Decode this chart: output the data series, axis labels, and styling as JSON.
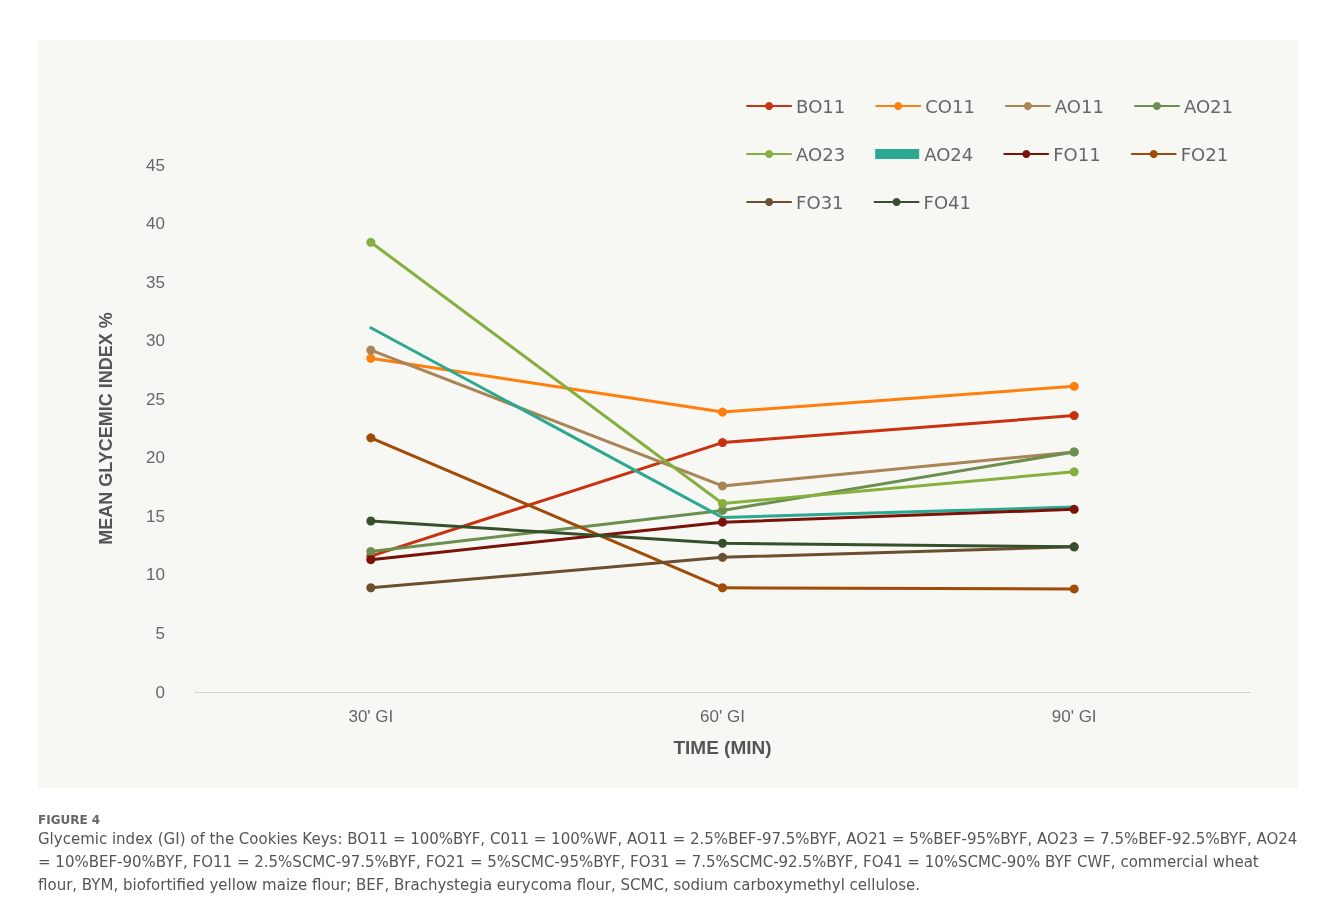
{
  "chart_data": {
    "type": "line",
    "xlabel": "TIME (MIN)",
    "ylabel": "MEAN GLYCEMIC INDEX %",
    "categories": [
      "30' GI",
      "60' GI",
      "90' GI"
    ],
    "series": [
      {
        "name": "BO11",
        "color": "#c9310f",
        "values": [
          11.6,
          21.3,
          23.6
        ]
      },
      {
        "name": "CO11",
        "color": "#ff7f0e",
        "values": [
          28.5,
          23.9,
          26.1
        ]
      },
      {
        "name": "AO11",
        "color": "#a88456",
        "values": [
          29.2,
          17.6,
          20.5
        ]
      },
      {
        "name": "AO21",
        "color": "#6a8f4e",
        "values": [
          12.0,
          15.5,
          20.5
        ]
      },
      {
        "name": "AO23",
        "color": "#86b03e",
        "values": [
          38.4,
          16.1,
          18.8
        ]
      },
      {
        "name": "AO24",
        "color": "#2aa890",
        "values": [
          31.1,
          14.9,
          15.8
        ],
        "marker": "none"
      },
      {
        "name": "FO11",
        "color": "#7a1208",
        "values": [
          11.3,
          14.5,
          15.6
        ]
      },
      {
        "name": "FO21",
        "color": "#a04c08",
        "values": [
          21.7,
          8.9,
          8.8
        ]
      },
      {
        "name": "FO31",
        "color": "#6b4f2e",
        "values": [
          8.9,
          11.5,
          12.4
        ]
      },
      {
        "name": "FO41",
        "color": "#36502c",
        "values": [
          14.6,
          12.7,
          12.4
        ]
      }
    ],
    "ylim": [
      0,
      45
    ],
    "yticks": [
      0,
      5,
      10,
      15,
      20,
      25,
      30,
      35,
      40,
      45
    ],
    "grid": false,
    "legend": "top right",
    "marker": "circle",
    "line_style": "solid",
    "annotations": [
      "FIGURE 4",
      "Glycemic index (GI) of the Cookies Keys: BO11 = 100%BYF, C011 = 100%WF, AO11 = 2.5%BEF-97.5%BYF, AO21 = 5%BEF-95%BYF, AO23 = 7.5%BEF-92.5%BYF, AO24 = 10%BEF-90%BYF, FO11 = 2.5%SCMC-97.5%BYF, FO21 = 5%SCMC-95%BYF, FO31 = 7.5%SCMC-92.5%BYF, FO41 = 10%SCMC-90% BYF CWF, commercial wheat flour, BYM, biofortified yellow maize flour; BEF, Brachystegia eurycoma flour, SCMC, sodium carboxymethyl cellulose."
    ]
  }
}
